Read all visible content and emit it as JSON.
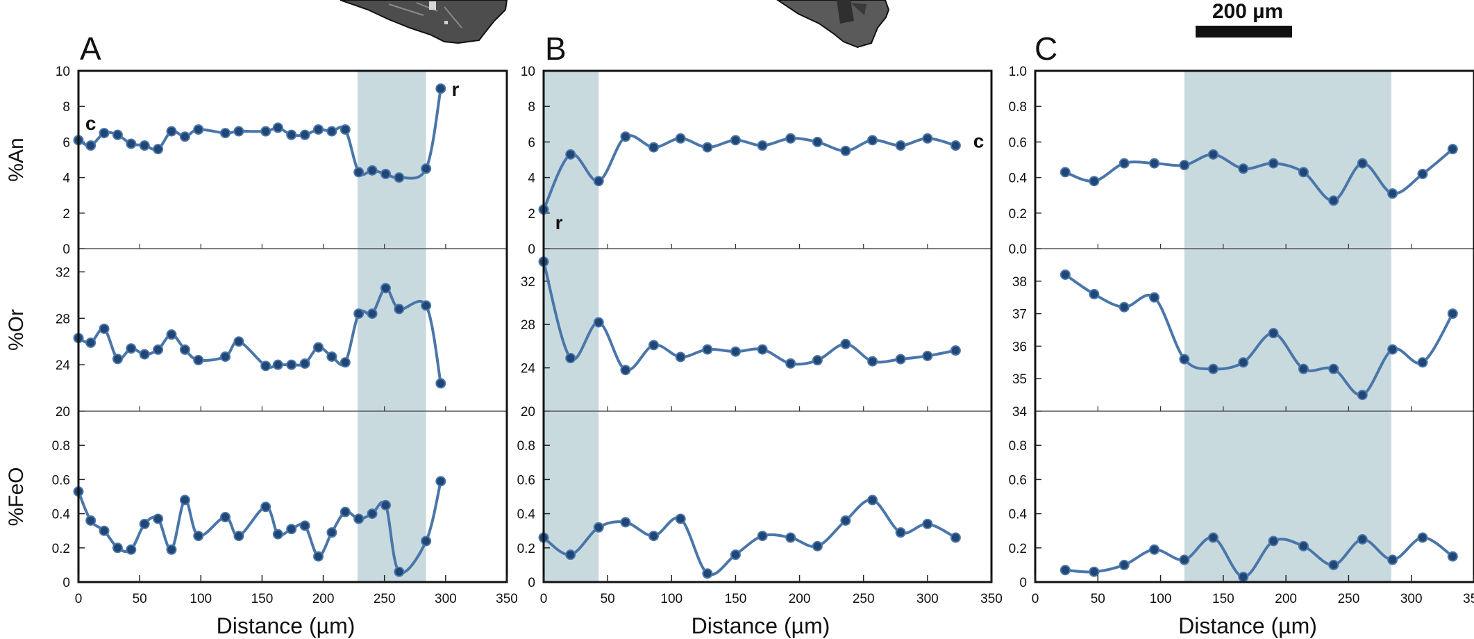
{
  "scale_bar": {
    "label": "200 µm"
  },
  "style": {
    "series_color": "#4a76aa",
    "marker_color": "#1f4675",
    "band_color": "#c9dadf",
    "frame_color": "#111111"
  },
  "chart_data": [
    {
      "type": "line",
      "panel": "A",
      "xlabel": "Distance (µm)",
      "xlim": [
        0,
        350
      ],
      "xticks": [
        0,
        50,
        100,
        150,
        200,
        250,
        300,
        350
      ],
      "shaded_x": [
        228,
        284
      ],
      "subplots": [
        {
          "ylabel": "%An",
          "ylim": [
            0,
            10
          ],
          "yticks": [
            0,
            2,
            4,
            6,
            8,
            10
          ],
          "points": [
            [
              0,
              6.1
            ],
            [
              10,
              5.8
            ],
            [
              21,
              6.5
            ],
            [
              32,
              6.4
            ],
            [
              43,
              5.9
            ],
            [
              54,
              5.8
            ],
            [
              65,
              5.6
            ],
            [
              76,
              6.6
            ],
            [
              87,
              6.3
            ],
            [
              98,
              6.7
            ],
            [
              120,
              6.5
            ],
            [
              131,
              6.6
            ],
            [
              153,
              6.6
            ],
            [
              163,
              6.8
            ],
            [
              174,
              6.4
            ],
            [
              185,
              6.4
            ],
            [
              196,
              6.7
            ],
            [
              207,
              6.6
            ],
            [
              218,
              6.7
            ],
            [
              229,
              4.3
            ],
            [
              240,
              4.4
            ],
            [
              251,
              4.2
            ],
            [
              262,
              4.0
            ],
            [
              284,
              4.5
            ],
            [
              296,
              9.0
            ]
          ],
          "annotations": [
            {
              "text": "c",
              "x": 10,
              "y": 7.0
            },
            {
              "text": "r",
              "x": 308,
              "y": 8.9
            }
          ]
        },
        {
          "ylabel": "%Or",
          "ylim": [
            20,
            34
          ],
          "yticks": [
            20,
            24,
            28,
            32
          ],
          "points": [
            [
              0,
              26.3
            ],
            [
              10,
              25.9
            ],
            [
              21,
              27.1
            ],
            [
              32,
              24.5
            ],
            [
              43,
              25.4
            ],
            [
              54,
              24.9
            ],
            [
              65,
              25.3
            ],
            [
              76,
              26.6
            ],
            [
              87,
              25.3
            ],
            [
              98,
              24.4
            ],
            [
              120,
              24.7
            ],
            [
              131,
              26.0
            ],
            [
              153,
              23.9
            ],
            [
              163,
              24.0
            ],
            [
              174,
              24.0
            ],
            [
              185,
              24.1
            ],
            [
              196,
              25.5
            ],
            [
              207,
              24.7
            ],
            [
              218,
              24.2
            ],
            [
              229,
              28.4
            ],
            [
              240,
              28.4
            ],
            [
              251,
              30.6
            ],
            [
              262,
              28.8
            ],
            [
              284,
              29.1
            ],
            [
              296,
              22.4
            ]
          ],
          "annotations": []
        },
        {
          "ylabel": "%FeO",
          "ylim": [
            0,
            1.0
          ],
          "yticks": [
            0,
            0.2,
            0.4,
            0.6,
            0.8
          ],
          "points": [
            [
              0,
              0.53
            ],
            [
              10,
              0.36
            ],
            [
              21,
              0.3
            ],
            [
              32,
              0.2
            ],
            [
              43,
              0.19
            ],
            [
              54,
              0.34
            ],
            [
              65,
              0.37
            ],
            [
              76,
              0.19
            ],
            [
              87,
              0.48
            ],
            [
              98,
              0.27
            ],
            [
              120,
              0.38
            ],
            [
              131,
              0.27
            ],
            [
              153,
              0.44
            ],
            [
              163,
              0.28
            ],
            [
              174,
              0.31
            ],
            [
              185,
              0.33
            ],
            [
              196,
              0.15
            ],
            [
              207,
              0.29
            ],
            [
              218,
              0.41
            ],
            [
              229,
              0.37
            ],
            [
              240,
              0.4
            ],
            [
              251,
              0.45
            ],
            [
              262,
              0.06
            ],
            [
              284,
              0.24
            ],
            [
              296,
              0.59
            ]
          ],
          "annotations": []
        }
      ]
    },
    {
      "type": "line",
      "panel": "B",
      "xlabel": "Distance (µm)",
      "xlim": [
        0,
        350
      ],
      "xticks": [
        0,
        50,
        100,
        150,
        200,
        250,
        300,
        350
      ],
      "shaded_x": [
        0,
        43
      ],
      "subplots": [
        {
          "ylabel": "",
          "ylim": [
            0,
            10
          ],
          "yticks": [
            0,
            2,
            4,
            6,
            8,
            10
          ],
          "points": [
            [
              0,
              2.2
            ],
            [
              21,
              5.3
            ],
            [
              43,
              3.8
            ],
            [
              64,
              6.3
            ],
            [
              86,
              5.7
            ],
            [
              107,
              6.2
            ],
            [
              128,
              5.7
            ],
            [
              150,
              6.1
            ],
            [
              171,
              5.8
            ],
            [
              193,
              6.2
            ],
            [
              214,
              6.0
            ],
            [
              236,
              5.5
            ],
            [
              257,
              6.1
            ],
            [
              279,
              5.8
            ],
            [
              300,
              6.2
            ],
            [
              322,
              5.8
            ]
          ],
          "annotations": [
            {
              "text": "c",
              "x": 340,
              "y": 6.0
            },
            {
              "text": "r",
              "x": 12,
              "y": 1.4
            }
          ]
        },
        {
          "ylabel": "",
          "ylim": [
            20,
            35
          ],
          "yticks": [
            20,
            24,
            28,
            32
          ],
          "points": [
            [
              0,
              33.8
            ],
            [
              21,
              24.9
            ],
            [
              43,
              28.2
            ],
            [
              64,
              23.8
            ],
            [
              86,
              26.1
            ],
            [
              107,
              25.0
            ],
            [
              128,
              25.7
            ],
            [
              150,
              25.5
            ],
            [
              171,
              25.7
            ],
            [
              193,
              24.4
            ],
            [
              214,
              24.7
            ],
            [
              236,
              26.2
            ],
            [
              257,
              24.6
            ],
            [
              279,
              24.8
            ],
            [
              300,
              25.1
            ],
            [
              322,
              25.6
            ]
          ],
          "annotations": []
        },
        {
          "ylabel": "",
          "ylim": [
            0,
            1.0
          ],
          "yticks": [
            0,
            0.2,
            0.4,
            0.6,
            0.8
          ],
          "points": [
            [
              0,
              0.26
            ],
            [
              21,
              0.16
            ],
            [
              43,
              0.32
            ],
            [
              64,
              0.35
            ],
            [
              86,
              0.27
            ],
            [
              107,
              0.37
            ],
            [
              128,
              0.05
            ],
            [
              150,
              0.16
            ],
            [
              171,
              0.27
            ],
            [
              193,
              0.26
            ],
            [
              214,
              0.21
            ],
            [
              236,
              0.36
            ],
            [
              257,
              0.48
            ],
            [
              279,
              0.29
            ],
            [
              300,
              0.34
            ],
            [
              322,
              0.26
            ]
          ],
          "annotations": []
        }
      ]
    },
    {
      "type": "line",
      "panel": "C",
      "xlabel": "Distance (µm)",
      "xlim": [
        0,
        350
      ],
      "xticks": [
        0,
        50,
        100,
        150,
        200,
        250,
        300,
        350
      ],
      "shaded_x": [
        119,
        284
      ],
      "subplots": [
        {
          "ylabel": "",
          "ylim": [
            0,
            1.0
          ],
          "yticks": [
            0,
            0.2,
            0.4,
            0.6,
            0.8,
            1.0
          ],
          "yticklabels": [
            "0.0",
            "0.2",
            "0.4",
            "0.6",
            "0.8",
            "1.0"
          ],
          "points": [
            [
              24,
              0.43
            ],
            [
              47,
              0.38
            ],
            [
              71,
              0.48
            ],
            [
              95,
              0.48
            ],
            [
              119,
              0.47
            ],
            [
              142,
              0.53
            ],
            [
              166,
              0.45
            ],
            [
              190,
              0.48
            ],
            [
              214,
              0.43
            ],
            [
              238,
              0.27
            ],
            [
              261,
              0.48
            ],
            [
              285,
              0.31
            ],
            [
              309,
              0.42
            ],
            [
              333,
              0.56
            ]
          ],
          "annotations": []
        },
        {
          "ylabel": "",
          "ylim": [
            34,
            39
          ],
          "yticks": [
            34,
            35,
            36,
            37,
            38
          ],
          "points": [
            [
              24,
              38.2
            ],
            [
              47,
              37.6
            ],
            [
              71,
              37.2
            ],
            [
              95,
              37.5
            ],
            [
              119,
              35.6
            ],
            [
              142,
              35.3
            ],
            [
              166,
              35.5
            ],
            [
              190,
              36.4
            ],
            [
              214,
              35.3
            ],
            [
              238,
              35.3
            ],
            [
              261,
              34.5
            ],
            [
              285,
              35.9
            ],
            [
              309,
              35.5
            ],
            [
              333,
              37.0
            ]
          ],
          "annotations": []
        },
        {
          "ylabel": "",
          "ylim": [
            0,
            1.0
          ],
          "yticks": [
            0,
            0.2,
            0.4,
            0.6,
            0.8
          ],
          "points": [
            [
              24,
              0.07
            ],
            [
              47,
              0.06
            ],
            [
              71,
              0.1
            ],
            [
              95,
              0.19
            ],
            [
              119,
              0.13
            ],
            [
              142,
              0.26
            ],
            [
              166,
              0.03
            ],
            [
              190,
              0.24
            ],
            [
              214,
              0.21
            ],
            [
              238,
              0.1
            ],
            [
              261,
              0.25
            ],
            [
              285,
              0.13
            ],
            [
              309,
              0.26
            ],
            [
              333,
              0.15
            ]
          ],
          "annotations": []
        }
      ]
    }
  ]
}
